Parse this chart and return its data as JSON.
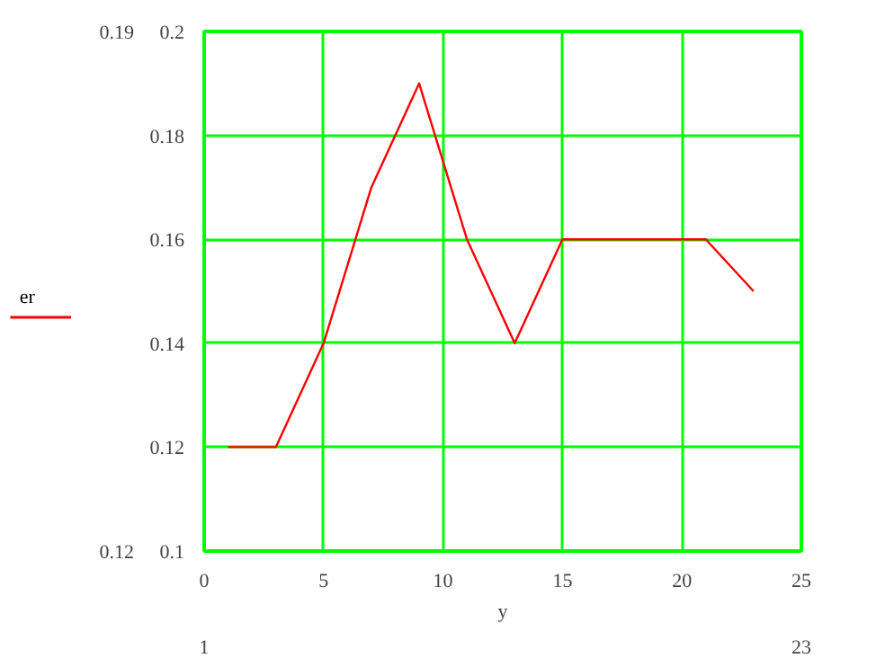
{
  "chart_data": {
    "type": "line",
    "xlabel": "y",
    "x": [
      1,
      3,
      5,
      7,
      9,
      11,
      13,
      15,
      17,
      19,
      21,
      23
    ],
    "series": [
      {
        "name": "er",
        "color": "#ff0000",
        "values": [
          0.12,
          0.12,
          0.14,
          0.17,
          0.19,
          0.16,
          0.14,
          0.16,
          0.16,
          0.16,
          0.16,
          0.15
        ]
      }
    ],
    "xlim": [
      0,
      25
    ],
    "xticks": [
      0,
      5,
      10,
      15,
      20,
      25
    ],
    "ylim": [
      0.1,
      0.2
    ],
    "yticks": [
      0.1,
      0.12,
      0.14,
      0.16,
      0.18,
      0.2
    ],
    "grid": true,
    "legend": "left",
    "marker": "none",
    "line_style": "solid",
    "annotations": [
      "0.19",
      "0.12",
      "1",
      "23"
    ]
  }
}
